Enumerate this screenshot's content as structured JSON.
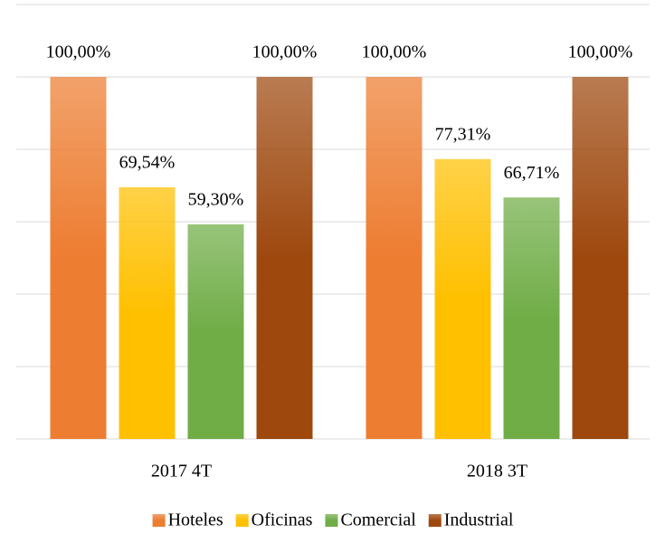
{
  "chart_data": {
    "type": "bar",
    "categories": [
      "2017 4T",
      "2018 3T"
    ],
    "series": [
      {
        "name": "Hoteles",
        "color": "#ed7d31",
        "values": [
          100,
          100
        ],
        "value_labels": [
          "100,00%",
          "100,00%"
        ]
      },
      {
        "name": "Oficinas",
        "color": "#ffc000",
        "values": [
          69.54,
          77.31
        ],
        "value_labels": [
          "69,54%",
          "77,31%"
        ]
      },
      {
        "name": "Comercial",
        "color": "#70ad47",
        "values": [
          59.3,
          66.71
        ],
        "value_labels": [
          "59,30%",
          "66,71%"
        ]
      },
      {
        "name": "Industrial",
        "color": "#9e480e",
        "values": [
          100,
          100
        ],
        "value_labels": [
          "100,00%",
          "100,00%"
        ]
      }
    ],
    "ylim": [
      0,
      120
    ],
    "yticks": [
      0,
      20,
      40,
      60,
      80,
      100,
      120
    ],
    "grid": true,
    "legend": "bottom"
  }
}
